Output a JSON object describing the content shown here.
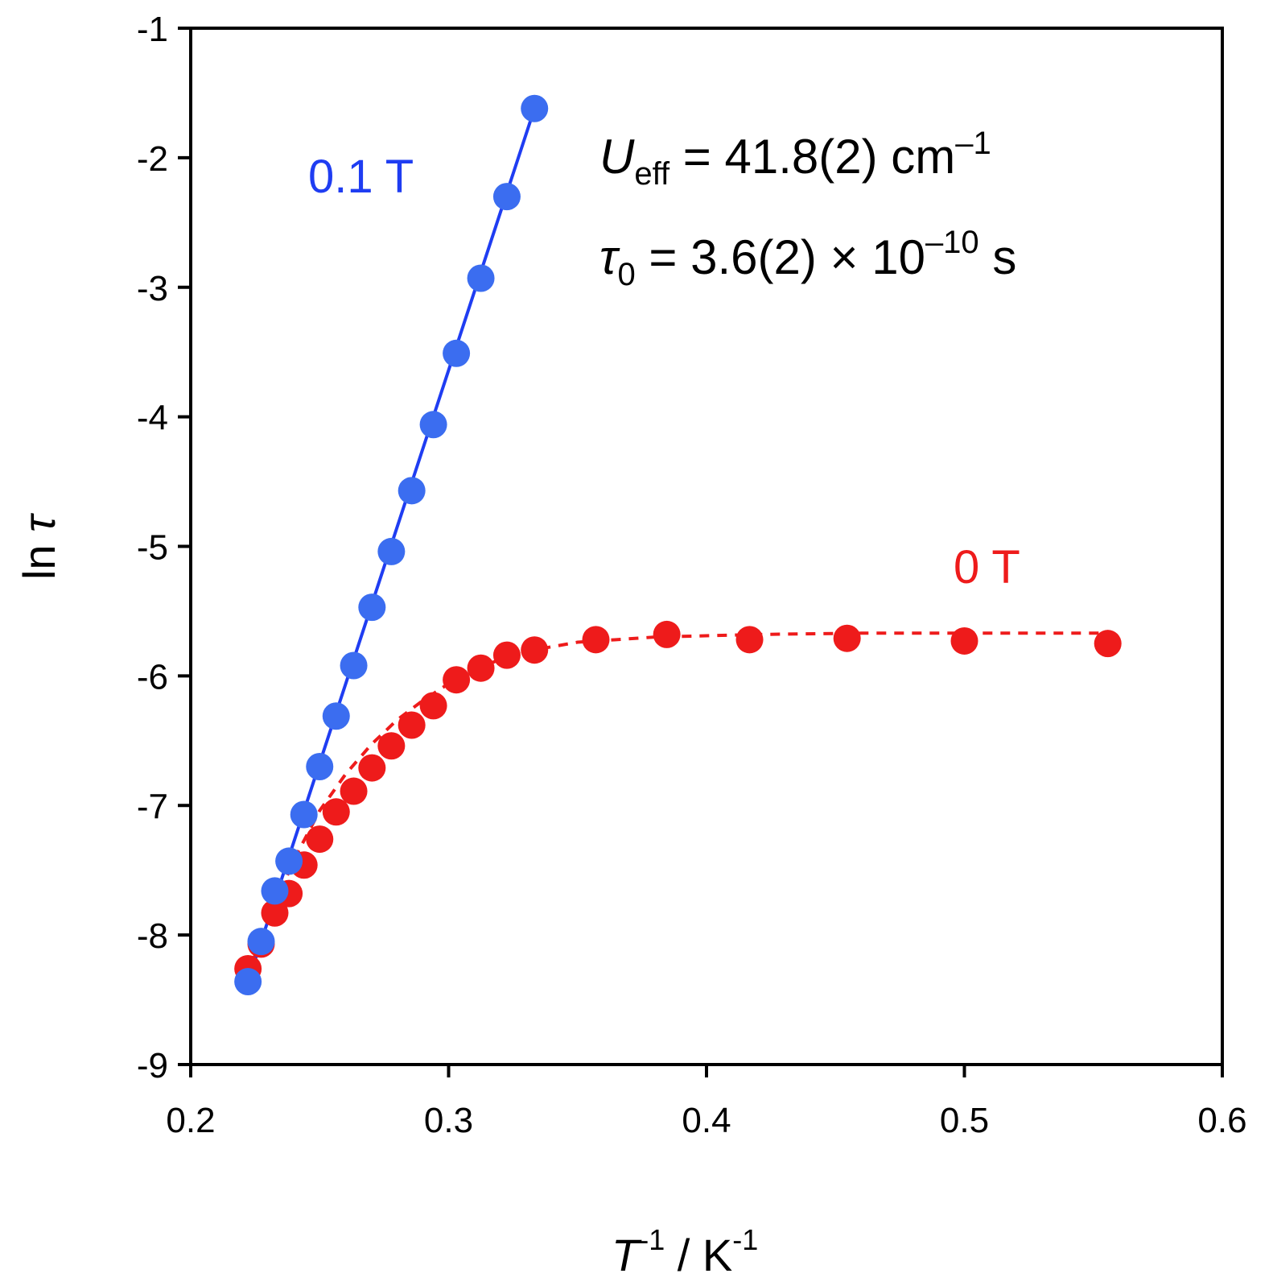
{
  "chart_data": {
    "type": "scatter",
    "title": "",
    "xlabel_main": "T",
    "xlabel_main_sup": "-1",
    "xlabel_sep": " / K",
    "xlabel_unit_sup": "-1",
    "ylabel_main": "ln ",
    "ylabel_tau": "τ",
    "xlim": [
      0.2,
      0.6
    ],
    "ylim": [
      -9,
      -1
    ],
    "xticks": [
      "0.2",
      "0.3",
      "0.4",
      "0.5",
      "0.6"
    ],
    "yticks": [
      "-1",
      "-2",
      "-3",
      "-4",
      "-5",
      "-6",
      "-7",
      "-8",
      "-9"
    ],
    "legend": "inline labels",
    "series": [
      {
        "name": "0.1 T",
        "color": "#1f3df2",
        "marker": "#3b6df0",
        "line": "solid fit",
        "x": [
          0.2222,
          0.2273,
          0.2326,
          0.2381,
          0.2439,
          0.25,
          0.2564,
          0.2632,
          0.2703,
          0.2778,
          0.2857,
          0.2941,
          0.303,
          0.3125,
          0.3226,
          0.3333
        ],
        "y": [
          -8.36,
          -8.05,
          -7.66,
          -7.43,
          -7.07,
          -6.7,
          -6.31,
          -5.92,
          -5.47,
          -5.04,
          -4.57,
          -4.06,
          -3.51,
          -2.93,
          -2.3,
          -1.62
        ],
        "fit_x": [
          0.2222,
          0.3333
        ],
        "fit_y": [
          -8.36,
          -1.62
        ]
      },
      {
        "name": "0 T",
        "color": "#ee1b1b",
        "marker": "#ee1b1b",
        "line": "dashed fit",
        "x": [
          0.2222,
          0.2273,
          0.2326,
          0.2381,
          0.2439,
          0.25,
          0.2564,
          0.2632,
          0.2703,
          0.2778,
          0.2857,
          0.2941,
          0.303,
          0.3125,
          0.3226,
          0.3333,
          0.3571,
          0.3846,
          0.4167,
          0.4545,
          0.5,
          0.5556
        ],
        "y": [
          -8.26,
          -8.07,
          -7.83,
          -7.68,
          -7.46,
          -7.26,
          -7.05,
          -6.89,
          -6.71,
          -6.54,
          -6.38,
          -6.23,
          -6.03,
          -5.94,
          -5.84,
          -5.8,
          -5.72,
          -5.68,
          -5.72,
          -5.71,
          -5.73,
          -5.75
        ],
        "fit_x": [
          0.2222,
          0.23,
          0.24,
          0.25,
          0.26,
          0.27,
          0.28,
          0.29,
          0.3,
          0.31,
          0.32,
          0.33,
          0.35,
          0.38,
          0.42,
          0.46,
          0.5,
          0.5556
        ],
        "fit_y": [
          -8.3,
          -7.89,
          -7.42,
          -7.04,
          -6.76,
          -6.53,
          -6.34,
          -6.19,
          -6.06,
          -5.96,
          -5.87,
          -5.81,
          -5.74,
          -5.7,
          -5.68,
          -5.67,
          -5.67,
          -5.67
        ]
      }
    ],
    "annotations": {
      "ueff_u": "U",
      "ueff_sub": "eff",
      "ueff_value": " = 41.8(2) cm",
      "ueff_sup": "–1",
      "tau_symbol": "τ",
      "tau_sub": "0",
      "tau_value": " = 3.6(2) × 10",
      "tau_sup": "–10",
      "tau_unit": " s"
    }
  }
}
